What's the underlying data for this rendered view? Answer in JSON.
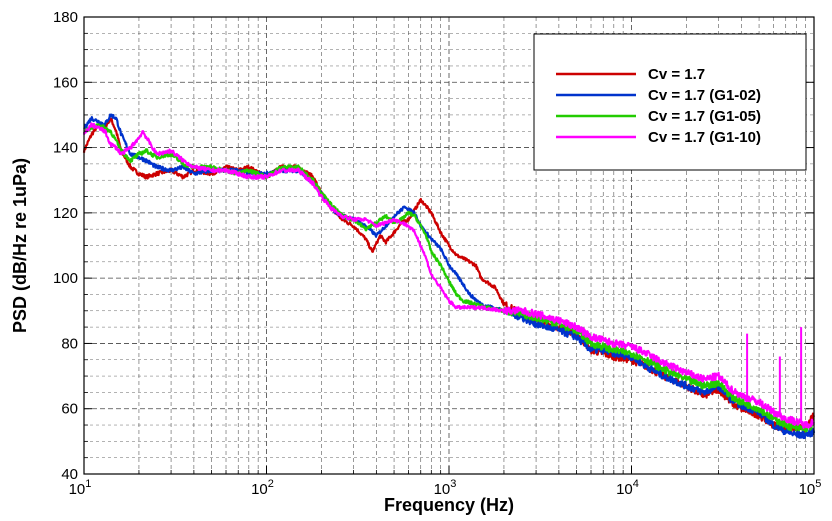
{
  "chart_data": {
    "type": "line",
    "xlabel": "Frequency (Hz)",
    "ylabel": "PSD (dB/Hz re 1uPa)",
    "x_scale": "log",
    "xlim": [
      10,
      100000
    ],
    "ylim": [
      40,
      180
    ],
    "x_ticks": [
      {
        "value": 10,
        "base": "10",
        "exp": "1"
      },
      {
        "value": 100,
        "base": "10",
        "exp": "2"
      },
      {
        "value": 1000,
        "base": "10",
        "exp": "3"
      },
      {
        "value": 10000,
        "base": "10",
        "exp": "4"
      },
      {
        "value": 100000,
        "base": "10",
        "exp": "5"
      }
    ],
    "y_ticks": [
      "40",
      "60",
      "80",
      "100",
      "120",
      "140",
      "160",
      "180"
    ],
    "grid": true,
    "legend_position": "top-right",
    "series": [
      {
        "name": "Cv = 1.7",
        "color": "#cc0000",
        "points": [
          [
            10,
            139
          ],
          [
            11,
            144
          ],
          [
            12,
            147
          ],
          [
            13,
            146
          ],
          [
            14,
            149
          ],
          [
            15,
            145
          ],
          [
            16,
            139
          ],
          [
            18,
            134
          ],
          [
            20,
            132
          ],
          [
            22,
            131
          ],
          [
            25,
            132
          ],
          [
            30,
            133
          ],
          [
            35,
            131
          ],
          [
            40,
            133
          ],
          [
            50,
            132
          ],
          [
            60,
            134
          ],
          [
            70,
            133
          ],
          [
            80,
            134
          ],
          [
            100,
            131
          ],
          [
            120,
            134
          ],
          [
            150,
            134
          ],
          [
            180,
            131
          ],
          [
            200,
            126
          ],
          [
            230,
            121
          ],
          [
            260,
            118
          ],
          [
            300,
            116
          ],
          [
            350,
            112
          ],
          [
            380,
            108
          ],
          [
            420,
            113
          ],
          [
            450,
            111
          ],
          [
            500,
            114
          ],
          [
            550,
            117
          ],
          [
            600,
            118
          ],
          [
            650,
            121
          ],
          [
            700,
            124
          ],
          [
            750,
            122
          ],
          [
            800,
            120
          ],
          [
            900,
            114
          ],
          [
            1000,
            110
          ],
          [
            1100,
            107
          ],
          [
            1200,
            106
          ],
          [
            1400,
            104
          ],
          [
            1500,
            100
          ],
          [
            1600,
            99
          ],
          [
            1800,
            97
          ],
          [
            2000,
            92
          ],
          [
            2500,
            89
          ],
          [
            3000,
            87
          ],
          [
            4000,
            85
          ],
          [
            5000,
            83
          ],
          [
            6000,
            78
          ],
          [
            7000,
            77
          ],
          [
            8000,
            76
          ],
          [
            10000,
            75
          ],
          [
            12000,
            73
          ],
          [
            15000,
            70
          ],
          [
            20000,
            67
          ],
          [
            25000,
            64
          ],
          [
            30000,
            66
          ],
          [
            35000,
            62
          ],
          [
            40000,
            60
          ],
          [
            45000,
            59
          ],
          [
            50000,
            58
          ],
          [
            60000,
            55
          ],
          [
            70000,
            54
          ],
          [
            80000,
            54
          ],
          [
            90000,
            54
          ],
          [
            95000,
            56
          ],
          [
            100000,
            58
          ]
        ]
      },
      {
        "name": "Cv = 1.7 (G1-02)",
        "color": "#0033cc",
        "points": [
          [
            10,
            146
          ],
          [
            11,
            149
          ],
          [
            12,
            148
          ],
          [
            13,
            147
          ],
          [
            14,
            150
          ],
          [
            15,
            149
          ],
          [
            16,
            144
          ],
          [
            18,
            138
          ],
          [
            20,
            137
          ],
          [
            22,
            136
          ],
          [
            25,
            134
          ],
          [
            30,
            133
          ],
          [
            35,
            134
          ],
          [
            40,
            132
          ],
          [
            50,
            133
          ],
          [
            60,
            133
          ],
          [
            70,
            133
          ],
          [
            80,
            132
          ],
          [
            100,
            132
          ],
          [
            120,
            133
          ],
          [
            150,
            133
          ],
          [
            180,
            129
          ],
          [
            200,
            126
          ],
          [
            230,
            121
          ],
          [
            260,
            119
          ],
          [
            300,
            118
          ],
          [
            350,
            116
          ],
          [
            400,
            113
          ],
          [
            450,
            116
          ],
          [
            500,
            119
          ],
          [
            550,
            121
          ],
          [
            580,
            122
          ],
          [
            600,
            121
          ],
          [
            650,
            120
          ],
          [
            700,
            116
          ],
          [
            800,
            112
          ],
          [
            900,
            109
          ],
          [
            1000,
            104
          ],
          [
            1100,
            101
          ],
          [
            1200,
            98
          ],
          [
            1300,
            95
          ],
          [
            1500,
            92
          ],
          [
            2000,
            90
          ],
          [
            2500,
            88
          ],
          [
            3000,
            86
          ],
          [
            4000,
            84
          ],
          [
            5000,
            82
          ],
          [
            6000,
            78
          ],
          [
            7000,
            78
          ],
          [
            8000,
            77
          ],
          [
            10000,
            76
          ],
          [
            12000,
            73
          ],
          [
            15000,
            70
          ],
          [
            20000,
            67
          ],
          [
            25000,
            65
          ],
          [
            30000,
            67
          ],
          [
            35000,
            63
          ],
          [
            40000,
            61
          ],
          [
            45000,
            60
          ],
          [
            50000,
            59
          ],
          [
            60000,
            55
          ],
          [
            70000,
            53
          ],
          [
            80000,
            52
          ],
          [
            90000,
            52
          ],
          [
            100000,
            53
          ]
        ]
      },
      {
        "name": "Cv = 1.7 (G1-05)",
        "color": "#22cc00",
        "points": [
          [
            10,
            145
          ],
          [
            11,
            146
          ],
          [
            12,
            147
          ],
          [
            13,
            146
          ],
          [
            14,
            145
          ],
          [
            15,
            142
          ],
          [
            16,
            139
          ],
          [
            18,
            136
          ],
          [
            20,
            138
          ],
          [
            22,
            139
          ],
          [
            25,
            137
          ],
          [
            30,
            138
          ],
          [
            35,
            135
          ],
          [
            40,
            134
          ],
          [
            50,
            134
          ],
          [
            60,
            133
          ],
          [
            70,
            132
          ],
          [
            80,
            133
          ],
          [
            100,
            131
          ],
          [
            120,
            134
          ],
          [
            150,
            134
          ],
          [
            180,
            130
          ],
          [
            200,
            126
          ],
          [
            230,
            122
          ],
          [
            260,
            119
          ],
          [
            300,
            118
          ],
          [
            350,
            115
          ],
          [
            400,
            117
          ],
          [
            450,
            119
          ],
          [
            500,
            117
          ],
          [
            550,
            118
          ],
          [
            600,
            120
          ],
          [
            650,
            119
          ],
          [
            700,
            116
          ],
          [
            750,
            113
          ],
          [
            800,
            108
          ],
          [
            900,
            104
          ],
          [
            1000,
            99
          ],
          [
            1100,
            95
          ],
          [
            1200,
            93
          ],
          [
            1400,
            92
          ],
          [
            1600,
            91
          ],
          [
            2000,
            90
          ],
          [
            2500,
            89
          ],
          [
            3000,
            88
          ],
          [
            4000,
            86
          ],
          [
            5000,
            84
          ],
          [
            6000,
            80
          ],
          [
            7000,
            79
          ],
          [
            8000,
            78
          ],
          [
            10000,
            77
          ],
          [
            12000,
            75
          ],
          [
            15000,
            72
          ],
          [
            20000,
            69
          ],
          [
            25000,
            67
          ],
          [
            30000,
            68
          ],
          [
            35000,
            64
          ],
          [
            40000,
            62
          ],
          [
            45000,
            61
          ],
          [
            50000,
            60
          ],
          [
            60000,
            57
          ],
          [
            70000,
            55
          ],
          [
            80000,
            54
          ],
          [
            90000,
            54
          ],
          [
            100000,
            55
          ]
        ]
      },
      {
        "name": "Cv = 1.7 (G1-10)",
        "color": "#ff00ff",
        "points": [
          [
            10,
            144
          ],
          [
            11,
            147
          ],
          [
            12,
            146
          ],
          [
            13,
            145
          ],
          [
            14,
            141
          ],
          [
            15,
            140
          ],
          [
            16,
            138
          ],
          [
            18,
            140
          ],
          [
            20,
            143
          ],
          [
            21,
            145
          ],
          [
            22,
            143
          ],
          [
            25,
            138
          ],
          [
            30,
            139
          ],
          [
            35,
            136
          ],
          [
            40,
            134
          ],
          [
            50,
            133
          ],
          [
            60,
            133
          ],
          [
            70,
            132
          ],
          [
            80,
            131
          ],
          [
            100,
            131
          ],
          [
            120,
            133
          ],
          [
            150,
            133
          ],
          [
            180,
            129
          ],
          [
            200,
            125
          ],
          [
            230,
            121
          ],
          [
            260,
            119
          ],
          [
            300,
            118
          ],
          [
            350,
            118
          ],
          [
            400,
            116
          ],
          [
            450,
            117
          ],
          [
            500,
            118
          ],
          [
            550,
            117
          ],
          [
            600,
            116
          ],
          [
            650,
            114
          ],
          [
            700,
            110
          ],
          [
            750,
            106
          ],
          [
            800,
            101
          ],
          [
            850,
            99
          ],
          [
            900,
            97
          ],
          [
            1000,
            93
          ],
          [
            1100,
            91
          ],
          [
            1200,
            91
          ],
          [
            1500,
            91
          ],
          [
            2000,
            90
          ],
          [
            2500,
            90
          ],
          [
            3000,
            89
          ],
          [
            4000,
            87
          ],
          [
            5000,
            85
          ],
          [
            6000,
            82
          ],
          [
            7000,
            81
          ],
          [
            8000,
            80
          ],
          [
            10000,
            79
          ],
          [
            12000,
            77
          ],
          [
            15000,
            74
          ],
          [
            20000,
            71
          ],
          [
            25000,
            69
          ],
          [
            30000,
            70
          ],
          [
            35000,
            66
          ],
          [
            40000,
            64
          ],
          [
            45000,
            63
          ],
          [
            50000,
            62
          ],
          [
            60000,
            59
          ],
          [
            70000,
            57
          ],
          [
            80000,
            56
          ],
          [
            90000,
            55
          ],
          [
            100000,
            56
          ]
        ]
      }
    ],
    "spikes": [
      {
        "series": "Cv = 1.7 (G1-10)",
        "x": 43000,
        "y": 83
      },
      {
        "series": "Cv = 1.7 (G1-10)",
        "x": 65000,
        "y": 76
      },
      {
        "series": "Cv = 1.7 (G1-10)",
        "x": 85000,
        "y": 85
      }
    ]
  }
}
